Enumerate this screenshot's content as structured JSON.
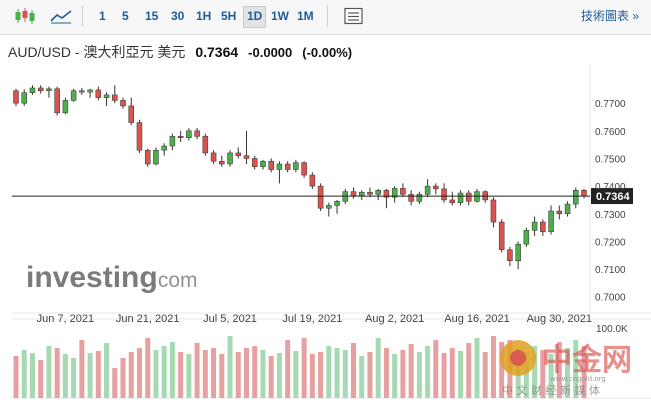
{
  "toolbar": {
    "intervals": [
      "1",
      "5",
      "15",
      "30",
      "1H",
      "5H",
      "1D",
      "1W",
      "1M"
    ],
    "active_interval": "1D",
    "tech_chart_link": "技術圖表 »",
    "icons": [
      "candlestick-icon",
      "area-chart-icon",
      "settings-panel-icon"
    ]
  },
  "header": {
    "pair": "AUD/USD - 澳大利亞元 美元",
    "price": "0.7364",
    "change": "-0.0000",
    "change_pct": "(-0.00%)"
  },
  "watermark": {
    "brand": "investing",
    "suffix": ".com",
    "cn_brand": "中金网",
    "cn_sub": "中 文 财 经 新 媒 体",
    "cn_url": "www.cngold.org"
  },
  "colors": {
    "up": "#4cae4c",
    "down": "#d9534f",
    "vol_up": "#a6d9b2",
    "vol_down": "#e7a0a0",
    "link": "#1f5c99"
  },
  "chart_data": {
    "type": "candlestick",
    "price_label": "0.7364",
    "ylim": [
      0.697,
      0.782
    ],
    "y_ticks": [
      "0.7700",
      "0.7600",
      "0.7500",
      "0.7400",
      "0.7300",
      "0.7200",
      "0.7100",
      "0.7000"
    ],
    "y_tick_values": [
      0.77,
      0.76,
      0.75,
      0.74,
      0.73,
      0.72,
      0.71,
      0.7
    ],
    "x_ticks": [
      "Jun 7, 2021",
      "Jun 21, 2021",
      "Jul 5, 2021",
      "Jul 19, 2021",
      "Aug 2, 2021",
      "Aug 16, 2021",
      "Aug 30, 2021"
    ],
    "x_tick_index": [
      6,
      16,
      26,
      36,
      46,
      56,
      66
    ],
    "volume_label": "100.0K",
    "candles": [
      [
        0.7745,
        0.7752,
        0.769,
        0.77
      ],
      [
        0.77,
        0.775,
        0.769,
        0.7738
      ],
      [
        0.7738,
        0.7765,
        0.773,
        0.7755
      ],
      [
        0.7755,
        0.7765,
        0.7735,
        0.7745
      ],
      [
        0.7745,
        0.776,
        0.772,
        0.7752
      ],
      [
        0.7752,
        0.776,
        0.7655,
        0.7665
      ],
      [
        0.7665,
        0.772,
        0.766,
        0.771
      ],
      [
        0.771,
        0.7752,
        0.7705,
        0.7745
      ],
      [
        0.7745,
        0.7755,
        0.773,
        0.774
      ],
      [
        0.774,
        0.7752,
        0.772,
        0.7748
      ],
      [
        0.7748,
        0.776,
        0.771,
        0.772
      ],
      [
        0.772,
        0.774,
        0.769,
        0.773
      ],
      [
        0.773,
        0.7765,
        0.77,
        0.771
      ],
      [
        0.771,
        0.772,
        0.768,
        0.769
      ],
      [
        0.769,
        0.772,
        0.762,
        0.763
      ],
      [
        0.763,
        0.764,
        0.752,
        0.753
      ],
      [
        0.753,
        0.7535,
        0.747,
        0.748
      ],
      [
        0.748,
        0.754,
        0.7475,
        0.753
      ],
      [
        0.753,
        0.7555,
        0.751,
        0.7545
      ],
      [
        0.7545,
        0.759,
        0.753,
        0.758
      ],
      [
        0.758,
        0.76,
        0.756,
        0.7575
      ],
      [
        0.7575,
        0.761,
        0.7565,
        0.76
      ],
      [
        0.76,
        0.761,
        0.757,
        0.758
      ],
      [
        0.758,
        0.759,
        0.751,
        0.752
      ],
      [
        0.752,
        0.753,
        0.748,
        0.749
      ],
      [
        0.749,
        0.751,
        0.747,
        0.748
      ],
      [
        0.748,
        0.753,
        0.747,
        0.752
      ],
      [
        0.752,
        0.754,
        0.75,
        0.751
      ],
      [
        0.751,
        0.76,
        0.748,
        0.75
      ],
      [
        0.75,
        0.751,
        0.746,
        0.747
      ],
      [
        0.747,
        0.7495,
        0.746,
        0.749
      ],
      [
        0.749,
        0.75,
        0.745,
        0.746
      ],
      [
        0.746,
        0.749,
        0.741,
        0.748
      ],
      [
        0.748,
        0.749,
        0.745,
        0.746
      ],
      [
        0.746,
        0.7495,
        0.745,
        0.7485
      ],
      [
        0.7485,
        0.749,
        0.743,
        0.744
      ],
      [
        0.744,
        0.745,
        0.739,
        0.74
      ],
      [
        0.74,
        0.741,
        0.731,
        0.732
      ],
      [
        0.732,
        0.734,
        0.729,
        0.733
      ],
      [
        0.733,
        0.735,
        0.73,
        0.7345
      ],
      [
        0.7345,
        0.739,
        0.7335,
        0.738
      ],
      [
        0.738,
        0.7395,
        0.7355,
        0.7365
      ],
      [
        0.7365,
        0.7385,
        0.735,
        0.7378
      ],
      [
        0.7378,
        0.7395,
        0.736,
        0.737
      ],
      [
        0.737,
        0.739,
        0.735,
        0.7385
      ],
      [
        0.7385,
        0.739,
        0.732,
        0.736
      ],
      [
        0.736,
        0.74,
        0.734,
        0.7392
      ],
      [
        0.7392,
        0.741,
        0.736,
        0.737
      ],
      [
        0.737,
        0.7385,
        0.733,
        0.7345
      ],
      [
        0.7345,
        0.738,
        0.7335,
        0.737
      ],
      [
        0.737,
        0.7425,
        0.736,
        0.74
      ],
      [
        0.74,
        0.741,
        0.737,
        0.739
      ],
      [
        0.739,
        0.741,
        0.734,
        0.735
      ],
      [
        0.735,
        0.738,
        0.733,
        0.734
      ],
      [
        0.734,
        0.7385,
        0.733,
        0.7375
      ],
      [
        0.7375,
        0.7385,
        0.733,
        0.7345
      ],
      [
        0.7345,
        0.739,
        0.734,
        0.738
      ],
      [
        0.738,
        0.7385,
        0.734,
        0.735
      ],
      [
        0.735,
        0.736,
        0.725,
        0.727
      ],
      [
        0.727,
        0.728,
        0.716,
        0.717
      ],
      [
        0.717,
        0.718,
        0.711,
        0.713
      ],
      [
        0.713,
        0.72,
        0.71,
        0.719
      ],
      [
        0.719,
        0.725,
        0.718,
        0.724
      ],
      [
        0.724,
        0.729,
        0.722,
        0.727
      ],
      [
        0.727,
        0.728,
        0.722,
        0.7235
      ],
      [
        0.7235,
        0.733,
        0.7225,
        0.731
      ],
      [
        0.731,
        0.733,
        0.728,
        0.73
      ],
      [
        0.73,
        0.7345,
        0.729,
        0.7335
      ],
      [
        0.7335,
        0.7395,
        0.732,
        0.7385
      ],
      [
        0.7385,
        0.739,
        0.7355,
        0.7364
      ]
    ],
    "volumes": [
      42,
      48,
      45,
      38,
      52,
      50,
      44,
      40,
      58,
      45,
      47,
      55,
      30,
      40,
      46,
      50,
      60,
      48,
      52,
      56,
      46,
      44,
      55,
      48,
      50,
      44,
      62,
      46,
      50,
      52,
      48,
      42,
      45,
      58,
      47,
      60,
      44,
      46,
      52,
      50,
      48,
      55,
      42,
      46,
      60,
      50,
      44,
      48,
      54,
      46,
      52,
      58,
      45,
      50,
      47,
      55,
      60,
      46,
      62,
      56,
      58,
      50,
      46,
      52,
      48,
      44,
      56,
      50,
      58,
      52
    ]
  }
}
